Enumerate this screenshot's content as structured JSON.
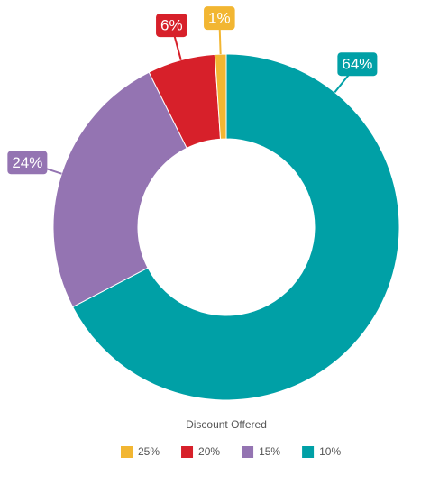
{
  "chart_data": {
    "type": "donut",
    "categories": [
      "25%",
      "20%",
      "15%",
      "10%"
    ],
    "values": [
      1,
      6,
      24,
      64
    ],
    "value_labels": [
      "1%",
      "6%",
      "24%",
      "64%"
    ],
    "colors": [
      "#f2b632",
      "#d7202a",
      "#9474b2",
      "#00a0a6"
    ],
    "legend_title": "Discount Offered"
  }
}
